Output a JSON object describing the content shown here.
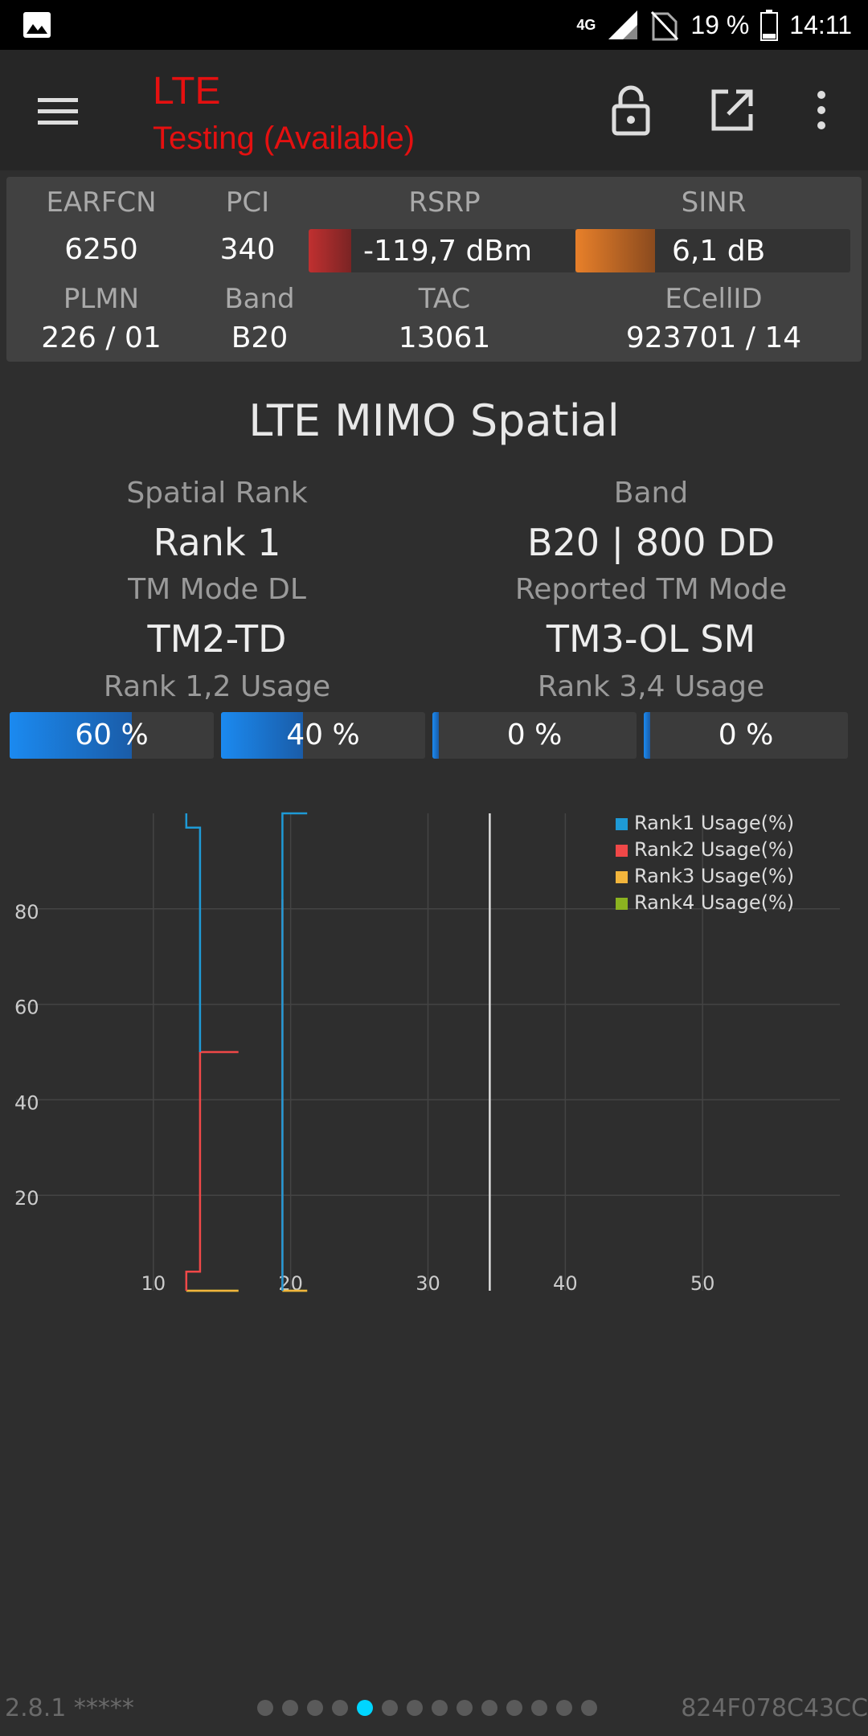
{
  "status_bar": {
    "network": "4G",
    "battery": "19 %",
    "time": "14:11"
  },
  "app_bar": {
    "title": "LTE",
    "subtitle": "Testing (Available)"
  },
  "cell_info": {
    "earfcn_label": "EARFCN",
    "earfcn": "6250",
    "pci_label": "PCI",
    "pci": "340",
    "rsrp_label": "RSRP",
    "rsrp": "-119,7 dBm",
    "rsrp_level": 0.16,
    "rsrp_color": "#c03030",
    "sinr_label": "SINR",
    "sinr": "6,1 dB",
    "sinr_level": 0.29,
    "sinr_color": "#e8802a",
    "plmn_label": "PLMN",
    "plmn": "226 / 01",
    "band_label": "Band",
    "band": "B20",
    "tac_label": "TAC",
    "tac": "13061",
    "ecellid_label": "ECellID",
    "ecellid": "923701 / 14"
  },
  "mimo": {
    "title": "LTE MIMO Spatial",
    "spatial_rank_label": "Spatial Rank",
    "spatial_rank": "Rank 1",
    "band_label": "Band",
    "band": "B20 | 800 DD",
    "tm_mode_label": "TM Mode DL",
    "tm_mode": "TM2-TD",
    "reported_tm_label": "Reported TM Mode",
    "reported_tm": "TM3-OL SM",
    "rank12_label": "Rank 1,2 Usage",
    "rank34_label": "Rank 3,4 Usage",
    "usage": [
      {
        "text": "60 %",
        "value": 60
      },
      {
        "text": "40 %",
        "value": 40
      },
      {
        "text": "0 %",
        "value": 0
      },
      {
        "text": "0 %",
        "value": 0
      }
    ]
  },
  "chart_data": {
    "type": "line",
    "xlim": [
      0,
      60
    ],
    "ylim": [
      0,
      100
    ],
    "x_ticks": [
      10,
      20,
      30,
      40,
      50
    ],
    "y_ticks": [
      20,
      40,
      60,
      80
    ],
    "grid": true,
    "legend_position": "top-right",
    "cursor_x": 34.5,
    "series": [
      {
        "name": "Rank1 Usage(%)",
        "color": "#1e9ad6",
        "segments": [
          [
            [
              12.4,
              100
            ],
            [
              12.4,
              97
            ],
            [
              13.4,
              97
            ],
            [
              13.4,
              50
            ]
          ],
          [
            [
              19.4,
              0
            ],
            [
              19.4,
              100
            ],
            [
              21.2,
              100
            ]
          ]
        ]
      },
      {
        "name": "Rank2 Usage(%)",
        "color": "#f04848",
        "segments": [
          [
            [
              12.4,
              0
            ],
            [
              12.4,
              4
            ],
            [
              13.4,
              4
            ],
            [
              13.4,
              50
            ],
            [
              16.2,
              50
            ]
          ],
          [
            [
              19.4,
              0
            ],
            [
              19.4,
              82
            ]
          ]
        ]
      },
      {
        "name": "Rank3 Usage(%)",
        "color": "#f2b53c",
        "segments": [
          [
            [
              12.4,
              0
            ],
            [
              16.2,
              0
            ]
          ],
          [
            [
              19.4,
              0
            ],
            [
              21.2,
              0
            ]
          ]
        ]
      },
      {
        "name": "Rank4 Usage(%)",
        "color": "#8bb320",
        "segments": [
          [
            [
              12.4,
              0
            ],
            [
              16.2,
              0
            ]
          ],
          [
            [
              19.4,
              0
            ],
            [
              21.2,
              0
            ]
          ]
        ]
      }
    ]
  },
  "footer": {
    "version": "2.8.1 *****",
    "device_id": "824F078C43CC",
    "page_count": 14,
    "active_page": 5
  }
}
